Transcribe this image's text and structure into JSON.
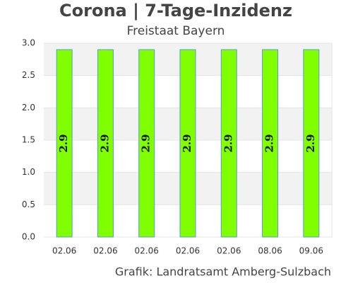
{
  "chart_data": {
    "type": "bar",
    "title": "Corona | 7-Tage-Inzidenz",
    "subtitle": "Freistaat Bayern",
    "source": "Grafik: Landratsamt Amberg-Sulzbach",
    "categories": [
      "02.06",
      "02.06",
      "02.06",
      "02.06",
      "02.06",
      "08.06",
      "09.06"
    ],
    "values": [
      2.9,
      2.9,
      2.9,
      2.9,
      2.9,
      2.9,
      2.9
    ],
    "color": "#7fff00",
    "edge_color": "#5b9bd5",
    "ylim": [
      0,
      3
    ],
    "yticks": [
      {
        "value": 0,
        "label": "0.0"
      },
      0.5,
      {
        "value": 1,
        "label": "1.0"
      },
      1.5,
      {
        "value": 2,
        "label": "2.0"
      },
      2.5,
      {
        "value": 3,
        "label": "3.0"
      }
    ],
    "grid": true
  }
}
